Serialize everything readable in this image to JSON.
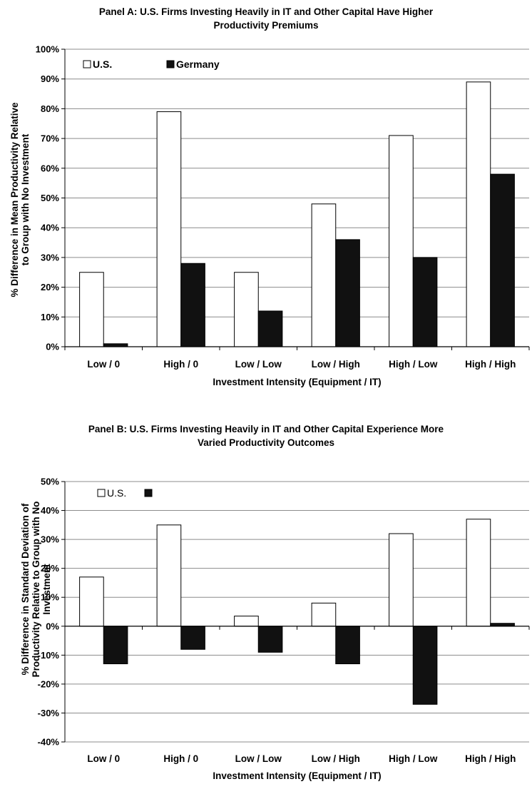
{
  "chart_data": [
    {
      "type": "bar",
      "title_lines": [
        "Panel A: U.S. Firms Investing Heavily in IT and Other Capital Have Higher",
        "Productivity Premiums"
      ],
      "xlabel": "Investment Intensity (Equipment / IT)",
      "ylabel_lines": [
        "% Difference in Mean Productivity Relative",
        "to Group with No Investment"
      ],
      "categories": [
        "Low / 0",
        "High / 0",
        "Low / Low",
        "Low / High",
        "High / Low",
        "High / High"
      ],
      "series": [
        {
          "name": "U.S.",
          "color": "#ffffff",
          "values": [
            25,
            79,
            25,
            48,
            71,
            89
          ]
        },
        {
          "name": "Germany",
          "color": "#111111",
          "values": [
            1,
            28,
            12,
            36,
            30,
            58
          ]
        }
      ],
      "ylim": [
        0,
        100
      ],
      "yticks": [
        "0%",
        "10%",
        "20%",
        "30%",
        "40%",
        "50%",
        "60%",
        "70%",
        "80%",
        "90%",
        "100%"
      ],
      "grid": true,
      "legend": "top-left"
    },
    {
      "type": "bar",
      "title_lines": [
        "Panel B: U.S. Firms Investing Heavily in IT and Other Capital Experience More",
        "Varied Productivity Outcomes"
      ],
      "xlabel": "Investment Intensity (Equipment / IT)",
      "ylabel_lines": [
        "% Difference in Standard Deviation of",
        "Productivity Relative to Group with No",
        "Investment"
      ],
      "categories": [
        "Low / 0",
        "High / 0",
        "Low / Low",
        "Low / High",
        "High / Low",
        "High / High"
      ],
      "series": [
        {
          "name": "U.S.",
          "color": "#ffffff",
          "values": [
            17,
            35,
            3.5,
            8,
            32,
            37
          ]
        },
        {
          "name": "",
          "color": "#111111",
          "values": [
            -13,
            -8,
            -9,
            -13,
            -27,
            1
          ]
        }
      ],
      "ylim": [
        -40,
        50
      ],
      "yticks": [
        "-40%",
        "-30%",
        "-20%",
        "-10%",
        "0%",
        "10%",
        "20%",
        "30%",
        "40%",
        "50%"
      ],
      "grid": true,
      "legend": "top-left"
    }
  ]
}
